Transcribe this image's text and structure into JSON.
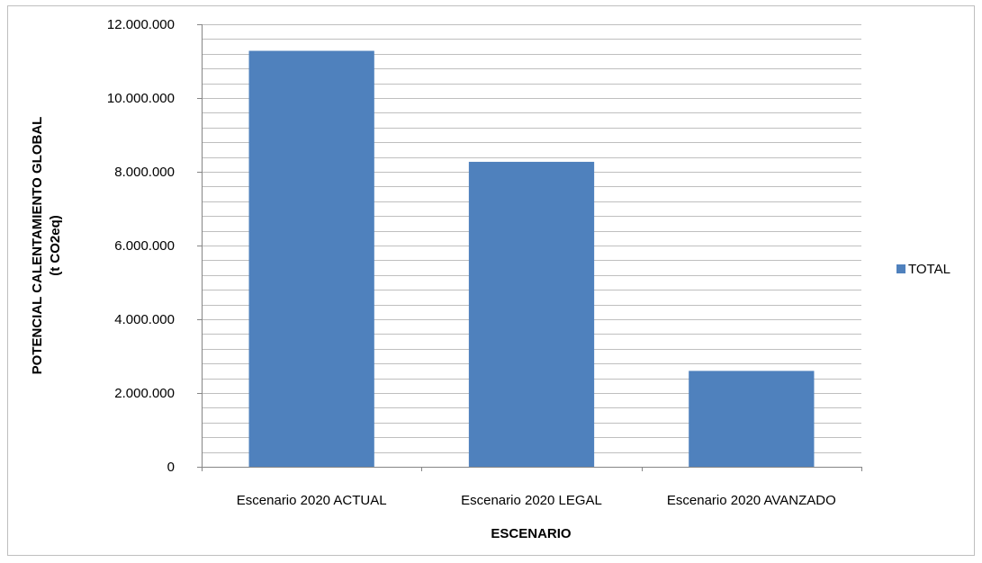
{
  "chart_data": {
    "type": "bar",
    "title": "",
    "categories": [
      "Escenario 2020 ACTUAL",
      "Escenario 2020 LEGAL",
      "Escenario 2020 AVANZADO"
    ],
    "series": [
      {
        "name": "TOTAL",
        "values": [
          11280000,
          8270000,
          2600000
        ],
        "color": "#4f81bd"
      }
    ],
    "xlabel": "ESCENARIO",
    "ylabel_line1": "POTENCIAL CALENTAMIENTO GLOBAL",
    "ylabel_line2": "(t CO2eq)",
    "ylim": [
      0,
      12000000
    ],
    "yticks": [
      0,
      2000000,
      4000000,
      6000000,
      8000000,
      10000000,
      12000000
    ],
    "ytick_labels": [
      "0",
      "2.000.000",
      "4.000.000",
      "6.000.000",
      "8.000.000",
      "10.000.000",
      "12.000.000"
    ],
    "minor_gridline_step": 400000,
    "grid": true,
    "legend_position": "right",
    "gridline_color": "#bfbfbf",
    "axis_color": "#868686"
  }
}
